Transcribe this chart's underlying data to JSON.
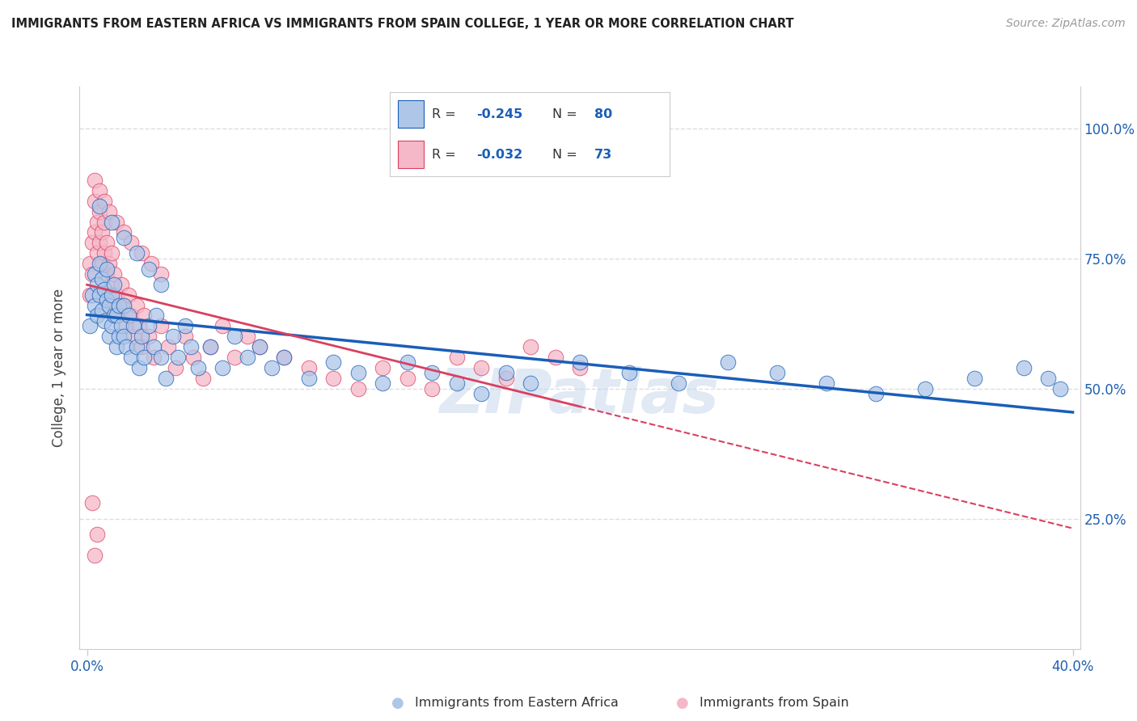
{
  "title": "IMMIGRANTS FROM EASTERN AFRICA VS IMMIGRANTS FROM SPAIN COLLEGE, 1 YEAR OR MORE CORRELATION CHART",
  "source": "Source: ZipAtlas.com",
  "ylabel": "College, 1 year or more",
  "blue_color": "#aec6e8",
  "pink_color": "#f5b8c8",
  "blue_line_color": "#1a5eb8",
  "pink_line_color": "#d94060",
  "title_color": "#222222",
  "source_color": "#999999",
  "grid_color": "#dddddd",
  "watermark": "ZIPatlas",
  "legend_blue_r": "-0.245",
  "legend_blue_n": "80",
  "legend_pink_r": "-0.032",
  "legend_pink_n": "73",
  "blue_scatter_x": [
    0.001,
    0.002,
    0.003,
    0.003,
    0.004,
    0.004,
    0.005,
    0.005,
    0.006,
    0.006,
    0.007,
    0.007,
    0.008,
    0.008,
    0.009,
    0.009,
    0.01,
    0.01,
    0.011,
    0.011,
    0.012,
    0.012,
    0.013,
    0.013,
    0.014,
    0.015,
    0.015,
    0.016,
    0.017,
    0.018,
    0.019,
    0.02,
    0.021,
    0.022,
    0.023,
    0.025,
    0.027,
    0.028,
    0.03,
    0.032,
    0.035,
    0.037,
    0.04,
    0.042,
    0.045,
    0.05,
    0.055,
    0.06,
    0.065,
    0.07,
    0.075,
    0.08,
    0.09,
    0.1,
    0.11,
    0.12,
    0.13,
    0.14,
    0.15,
    0.16,
    0.17,
    0.18,
    0.2,
    0.22,
    0.24,
    0.26,
    0.28,
    0.3,
    0.32,
    0.34,
    0.36,
    0.38,
    0.39,
    0.395,
    0.005,
    0.01,
    0.015,
    0.02,
    0.025,
    0.03
  ],
  "blue_scatter_y": [
    0.62,
    0.68,
    0.66,
    0.72,
    0.7,
    0.64,
    0.68,
    0.74,
    0.65,
    0.71,
    0.63,
    0.69,
    0.67,
    0.73,
    0.6,
    0.66,
    0.62,
    0.68,
    0.64,
    0.7,
    0.58,
    0.64,
    0.6,
    0.66,
    0.62,
    0.6,
    0.66,
    0.58,
    0.64,
    0.56,
    0.62,
    0.58,
    0.54,
    0.6,
    0.56,
    0.62,
    0.58,
    0.64,
    0.56,
    0.52,
    0.6,
    0.56,
    0.62,
    0.58,
    0.54,
    0.58,
    0.54,
    0.6,
    0.56,
    0.58,
    0.54,
    0.56,
    0.52,
    0.55,
    0.53,
    0.51,
    0.55,
    0.53,
    0.51,
    0.49,
    0.53,
    0.51,
    0.55,
    0.53,
    0.51,
    0.55,
    0.53,
    0.51,
    0.49,
    0.5,
    0.52,
    0.54,
    0.52,
    0.5,
    0.85,
    0.82,
    0.79,
    0.76,
    0.73,
    0.7
  ],
  "pink_scatter_x": [
    0.001,
    0.001,
    0.002,
    0.002,
    0.003,
    0.003,
    0.004,
    0.004,
    0.005,
    0.005,
    0.006,
    0.006,
    0.007,
    0.007,
    0.008,
    0.008,
    0.009,
    0.009,
    0.01,
    0.01,
    0.011,
    0.011,
    0.012,
    0.013,
    0.014,
    0.015,
    0.016,
    0.017,
    0.018,
    0.019,
    0.02,
    0.021,
    0.022,
    0.023,
    0.025,
    0.027,
    0.03,
    0.033,
    0.036,
    0.04,
    0.043,
    0.047,
    0.05,
    0.055,
    0.06,
    0.065,
    0.07,
    0.08,
    0.09,
    0.1,
    0.11,
    0.12,
    0.13,
    0.14,
    0.15,
    0.16,
    0.17,
    0.18,
    0.19,
    0.2,
    0.003,
    0.005,
    0.007,
    0.009,
    0.012,
    0.015,
    0.018,
    0.022,
    0.026,
    0.03,
    0.002,
    0.003,
    0.004
  ],
  "pink_scatter_y": [
    0.68,
    0.74,
    0.72,
    0.78,
    0.8,
    0.86,
    0.76,
    0.82,
    0.78,
    0.84,
    0.74,
    0.8,
    0.76,
    0.82,
    0.72,
    0.78,
    0.68,
    0.74,
    0.7,
    0.76,
    0.66,
    0.72,
    0.68,
    0.64,
    0.7,
    0.66,
    0.62,
    0.68,
    0.64,
    0.6,
    0.66,
    0.62,
    0.58,
    0.64,
    0.6,
    0.56,
    0.62,
    0.58,
    0.54,
    0.6,
    0.56,
    0.52,
    0.58,
    0.62,
    0.56,
    0.6,
    0.58,
    0.56,
    0.54,
    0.52,
    0.5,
    0.54,
    0.52,
    0.5,
    0.56,
    0.54,
    0.52,
    0.58,
    0.56,
    0.54,
    0.9,
    0.88,
    0.86,
    0.84,
    0.82,
    0.8,
    0.78,
    0.76,
    0.74,
    0.72,
    0.28,
    0.18,
    0.22
  ]
}
